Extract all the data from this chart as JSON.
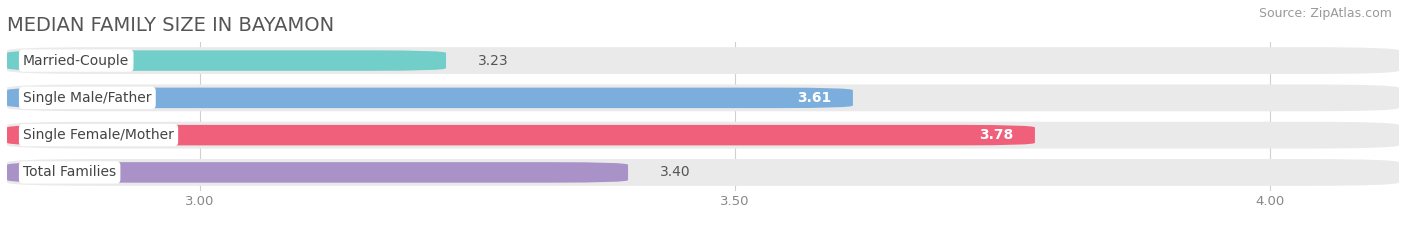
{
  "title": "MEDIAN FAMILY SIZE IN BAYAMON",
  "source": "Source: ZipAtlas.com",
  "categories": [
    "Married-Couple",
    "Single Male/Father",
    "Single Female/Mother",
    "Total Families"
  ],
  "values": [
    3.23,
    3.61,
    3.78,
    3.4
  ],
  "bar_colors": [
    "#72CEC9",
    "#7BAEDD",
    "#F0607A",
    "#A992C8"
  ],
  "bar_bg_colors": [
    "#EBEBEB",
    "#EBEBEB",
    "#EBEBEB",
    "#EBEBEB"
  ],
  "xlim": [
    2.82,
    4.12
  ],
  "xticks": [
    3.0,
    3.5,
    4.0
  ],
  "xtick_labels": [
    "3.00",
    "3.50",
    "4.00"
  ],
  "title_fontsize": 14,
  "source_fontsize": 9,
  "bar_label_fontsize": 10,
  "value_fontsize": 10,
  "background_color": "#ffffff"
}
